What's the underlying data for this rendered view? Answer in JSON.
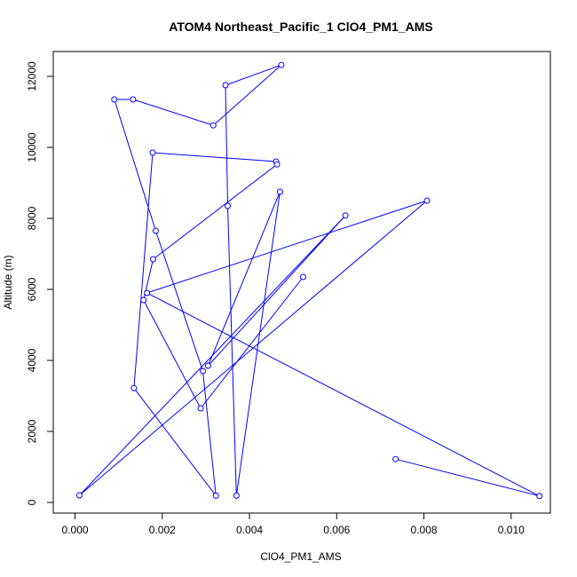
{
  "chart_data": {
    "type": "line",
    "title": "ATOM4 Northeast_Pacific_1 ClO4_PM1_AMS",
    "xlabel": "ClO4_PM1_AMS",
    "ylabel": "Altitude (m)",
    "xlim": [
      -0.0005,
      0.0109
    ],
    "ylim": [
      -300,
      12700
    ],
    "xticks": [
      0.0,
      0.002,
      0.004,
      0.006,
      0.008,
      0.01
    ],
    "xtick_labels": [
      "0.000",
      "0.002",
      "0.004",
      "0.006",
      "0.008",
      "0.010"
    ],
    "yticks": [
      0,
      2000,
      4000,
      6000,
      8000,
      10000,
      12000
    ],
    "ytick_labels": [
      "0",
      "2000",
      "4000",
      "6000",
      "8000",
      "10000",
      "12000"
    ],
    "series": [
      {
        "color": "#0000ff",
        "marker": "open-circle",
        "x": [
          0.00735,
          0.01065,
          0.00165,
          0.00807,
          0.0001,
          0.0062,
          0.00305,
          0.0047,
          0.0037,
          0.0035,
          0.00345,
          0.00473,
          0.00317,
          0.00133,
          0.0009,
          0.00185,
          0.00293,
          0.00323,
          0.00135,
          0.00178,
          0.00461,
          0.00463,
          0.00179,
          0.00157,
          0.00288,
          0.00523
        ],
        "y": [
          1220,
          180,
          5900,
          8500,
          200,
          8080,
          3850,
          8750,
          190,
          8350,
          11750,
          12320,
          10620,
          11350,
          11350,
          7650,
          3700,
          190,
          3220,
          9850,
          9600,
          9520,
          6850,
          5700,
          2650,
          6350
        ]
      }
    ],
    "grid": false,
    "legend": "none"
  }
}
